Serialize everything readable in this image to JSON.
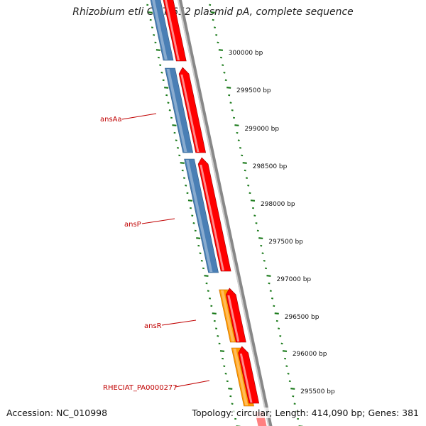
{
  "title": "Rhizobium etli CIAT 652 plasmid pA, complete sequence",
  "accession": "Accession: NC_010998",
  "summary": "Topology: circular; Length: 414,090 bp; Genes: 381",
  "colors": {
    "forward_cds": "#ff0000",
    "reverse_cds": "#4a7fb5",
    "regulator": "#ff9900",
    "gene_label": "#c00000",
    "ticks": "#1a7a1a",
    "backbone": "#888888"
  },
  "ticks": [
    "300000 bp",
    "299500 bp",
    "299000 bp",
    "298500 bp",
    "298000 bp",
    "297500 bp",
    "297000 bp",
    "296500 bp",
    "296000 bp",
    "295500 bp"
  ],
  "genes": [
    "ansAa",
    "ansP",
    "ansR",
    "RHECIAT_PA0000277"
  ]
}
